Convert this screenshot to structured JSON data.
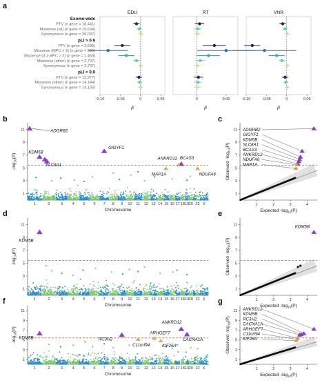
{
  "colors": {
    "ptv": "#1b2a4a",
    "missense_hi": "#2f6fb0",
    "missense_mid": "#4aa0b8",
    "missense_other": "#6fc7a6",
    "synonymous": "#c2e5a0",
    "chr_blue": "#2e8fc2",
    "chr_green": "#7cc576",
    "purple": "#8a3fc4",
    "orange": "#e9a04e",
    "threshold": "#e07b39",
    "qq": "#111111"
  },
  "labels": {
    "a": "a",
    "b": "b",
    "c": "c",
    "d": "d",
    "e": "e",
    "f": "f",
    "g": "g",
    "beta": "β",
    "chromosome": "Chromosome",
    "ylog": "-log10(P)",
    "observed": "Observed -log10(P)",
    "expected": "Expected -log10(P)"
  },
  "chart_data": [
    {
      "id": "a",
      "type": "scatter",
      "subtype": "forest",
      "panels": [
        "EDU",
        "RT",
        "VNR"
      ],
      "xlim": [
        -0.1,
        0.06
      ],
      "xticks": [
        "-0.05",
        "0",
        "0.05"
      ],
      "xtick_values": [
        -0.05,
        0,
        0.05
      ],
      "xticks_edu": [
        "-0.10",
        "-0.05",
        "0",
        "0.05"
      ],
      "xtick_values_edu": [
        -0.1,
        -0.05,
        0,
        0.05
      ],
      "xlabel": "β",
      "groups": [
        {
          "header": "Exome-wide",
          "rows": [
            {
              "label": "PTV (n gene = 18,441)",
              "cls": "ptv",
              "edu": [
                -0.01,
                0.004
              ],
              "rt": [
                0.005,
                0.004
              ],
              "vnr": [
                -0.01,
                0.004
              ]
            },
            {
              "label": "Missense (all) (n gene = 19,634)",
              "cls": "mo",
              "edu": [
                -0.003,
                0.003
              ],
              "rt": [
                0.002,
                0.003
              ],
              "vnr": [
                -0.004,
                0.003
              ]
            },
            {
              "label": "Synonymous (n gene = 20,037)",
              "cls": "syn",
              "edu": [
                0.001,
                0.003
              ],
              "rt": [
                0.001,
                0.003
              ],
              "vnr": [
                0.001,
                0.003
              ]
            }
          ]
        },
        {
          "header": "pLI > 0.9",
          "rows": [
            {
              "label": "PTV (n gene = 2,686)",
              "cls": "ptv",
              "edu": [
                -0.045,
                0.01
              ],
              "rt": [
                0.03,
                0.01
              ],
              "vnr": [
                -0.085,
                0.01
              ]
            },
            {
              "label": "Missense (MPC > 3) (n gene = 580)",
              "cls": "mh",
              "edu": [
                -0.08,
                0.025
              ],
              "rt": [
                0.05,
                0.025
              ],
              "vnr": [
                -0.055,
                0.04
              ]
            },
            {
              "label": "Missense (3 ≥ MPC > 2) (n gene = 1,460)",
              "cls": "mm",
              "edu": [
                -0.035,
                0.01
              ],
              "rt": [
                0.02,
                0.01
              ],
              "vnr": [
                -0.025,
                0.01
              ]
            },
            {
              "label": "Missense (other) (n gene = 2,707)",
              "cls": "mo",
              "edu": [
                -0.01,
                0.004
              ],
              "rt": [
                0.006,
                0.004
              ],
              "vnr": [
                -0.012,
                0.004
              ]
            },
            {
              "label": "Synonymous (n gene = 2,707)",
              "cls": "syn",
              "edu": [
                0.0,
                0.003
              ],
              "rt": [
                0.001,
                0.003
              ],
              "vnr": [
                0.001,
                0.003
              ]
            }
          ]
        },
        {
          "header": "pLI < 0.9",
          "rows": [
            {
              "label": "PTV (n gene = 13,977)",
              "cls": "ptv",
              "edu": [
                -0.004,
                0.004
              ],
              "rt": [
                0.003,
                0.004
              ],
              "vnr": [
                -0.004,
                0.004
              ]
            },
            {
              "label": "Missense (other) (n gene = 14,144)",
              "cls": "mo",
              "edu": [
                -0.002,
                0.003
              ],
              "rt": [
                0.002,
                0.003
              ],
              "vnr": [
                -0.002,
                0.003
              ]
            },
            {
              "label": "Synonymous (n gene = 14,135)",
              "cls": "syn",
              "edu": [
                0.0,
                0.003
              ],
              "rt": [
                0.001,
                0.003
              ],
              "vnr": [
                0.001,
                0.003
              ]
            }
          ]
        }
      ]
    },
    {
      "id": "b",
      "type": "scatter",
      "subtype": "manhattan",
      "trait": "EDU",
      "ylim": [
        0,
        12
      ],
      "yticks": [
        1,
        3,
        5,
        7,
        9,
        11
      ],
      "threshold": 5.4,
      "xlabel": "Chromosome",
      "ylabel": "-log10(P)",
      "chromosomes": [
        "1",
        "2",
        "3",
        "4",
        "5",
        "6",
        "7",
        "8",
        "9",
        "10",
        "11",
        "12",
        "13",
        "14",
        "15",
        "16",
        "17",
        "18",
        "19",
        "20",
        "21",
        "22",
        "X"
      ],
      "chr_ticks": [
        "1",
        "2",
        "3",
        "4",
        "5",
        "6",
        "7",
        "8",
        "9",
        "10",
        "11",
        "12",
        "13",
        "14",
        "15",
        "16",
        "17",
        "18",
        "19",
        "20",
        "22",
        "X"
      ],
      "base_top": 1.8,
      "hits": [
        {
          "gene": "ADGRB2",
          "chr": 1,
          "pos": 0.15,
          "y": 11.1,
          "kind": "purple"
        },
        {
          "gene": "KDM5B",
          "chr": 1,
          "pos": 0.85,
          "y": 6.7,
          "kind": "purple"
        },
        {
          "gene": "",
          "chr": 2,
          "pos": 0.2,
          "y": 6.3,
          "kind": "purple"
        },
        {
          "gene": "SLC8A1",
          "chr": 2,
          "pos": 0.35,
          "y": 6.0,
          "kind": "purple"
        },
        {
          "gene": "GIGYF1",
          "chr": 7,
          "pos": 0.5,
          "y": 7.6,
          "kind": "purple"
        },
        {
          "gene": "ANKRD12",
          "chr": 18,
          "pos": 0.2,
          "y": 5.6,
          "kind": "purple"
        },
        {
          "gene": "BCAS3",
          "chr": 17,
          "pos": 0.7,
          "y": 5.45,
          "kind": "orange"
        },
        {
          "gene": "MAP1A",
          "chr": 15,
          "pos": 0.4,
          "y": 4.9,
          "kind": "orange"
        },
        {
          "gene": "NDUFA6",
          "chr": 22,
          "pos": 0.5,
          "y": 4.9,
          "kind": "orange"
        }
      ],
      "scatter": [
        {
          "chr": 3,
          "pos": 0.4,
          "y": 3.4
        },
        {
          "chr": 4,
          "pos": 0.6,
          "y": 3.1
        },
        {
          "chr": 6,
          "pos": 0.3,
          "y": 3.6
        },
        {
          "chr": 8,
          "pos": 0.5,
          "y": 4.2
        },
        {
          "chr": 9,
          "pos": 0.2,
          "y": 3.2
        },
        {
          "chr": 10,
          "pos": 0.6,
          "y": 3.9
        },
        {
          "chr": 11,
          "pos": 0.5,
          "y": 4.4
        },
        {
          "chr": 12,
          "pos": 0.3,
          "y": 3.0
        },
        {
          "chr": 13,
          "pos": 0.7,
          "y": 3.6
        },
        {
          "chr": 16,
          "pos": 0.5,
          "y": 3.3
        },
        {
          "chr": 19,
          "pos": 0.5,
          "y": 3.1
        },
        {
          "chr": 5,
          "pos": 0.5,
          "y": 2.9
        },
        {
          "chr": 20,
          "pos": 0.3,
          "y": 3.7
        },
        {
          "chr": 1,
          "pos": 0.6,
          "y": 3.5
        },
        {
          "chr": 2,
          "pos": 0.7,
          "y": 3.0
        }
      ]
    },
    {
      "id": "c",
      "type": "scatter",
      "subtype": "qq",
      "trait": "EDU",
      "xlim": [
        0,
        4.6
      ],
      "ylim": [
        0,
        12
      ],
      "xticks": [
        1,
        2,
        3,
        4
      ],
      "yticks": [
        1,
        3,
        5,
        7,
        9,
        11
      ],
      "threshold": 5.4,
      "xlabel": "Expected -log10(P)",
      "ylabel": "Observed -log10(P)",
      "labels": [
        "ADGRB2",
        "GIGYF1",
        "KDM5B",
        "SLC8A1",
        "BCAS3",
        "ANKRD12",
        "NDUFA6",
        "MAP1A"
      ],
      "top_points": [
        {
          "x": 4.4,
          "y": 11.1,
          "kind": "purple"
        },
        {
          "x": 3.7,
          "y": 7.6,
          "kind": "purple"
        },
        {
          "x": 3.6,
          "y": 6.7,
          "kind": "purple"
        },
        {
          "x": 3.55,
          "y": 6.3,
          "kind": "purple"
        },
        {
          "x": 3.5,
          "y": 6.0,
          "kind": "purple"
        },
        {
          "x": 3.45,
          "y": 5.6,
          "kind": "purple"
        },
        {
          "x": 3.4,
          "y": 5.45,
          "kind": "orange"
        },
        {
          "x": 3.35,
          "y": 4.9,
          "kind": "orange"
        },
        {
          "x": 3.3,
          "y": 4.9,
          "kind": "orange"
        }
      ]
    },
    {
      "id": "d",
      "type": "scatter",
      "subtype": "manhattan",
      "trait": "RT",
      "ylim": [
        0,
        12
      ],
      "yticks": [
        1,
        3,
        5,
        7,
        9,
        11
      ],
      "threshold": 5.4,
      "xlabel": "Chromosome",
      "ylabel": "-log10(P)",
      "chromosomes": [
        "1",
        "2",
        "3",
        "4",
        "5",
        "6",
        "7",
        "8",
        "9",
        "10",
        "11",
        "12",
        "13",
        "14",
        "15",
        "16",
        "17",
        "18",
        "19",
        "20",
        "21",
        "22",
        "X"
      ],
      "chr_ticks": [
        "1",
        "2",
        "3",
        "4",
        "5",
        "6",
        "7",
        "8",
        "9",
        "10",
        "11",
        "12",
        "13",
        "14",
        "15",
        "16",
        "17",
        "18",
        "19",
        "20",
        "22",
        "X"
      ],
      "base_top": 2.0,
      "hits": [
        {
          "gene": "KDM5B",
          "chr": 1,
          "pos": 0.85,
          "y": 9.8,
          "kind": "purple"
        }
      ],
      "scatter": [
        {
          "chr": 2,
          "pos": 0.3,
          "y": 4.6
        },
        {
          "chr": 2,
          "pos": 0.7,
          "y": 3.8
        },
        {
          "chr": 3,
          "pos": 0.5,
          "y": 3.4
        },
        {
          "chr": 5,
          "pos": 0.4,
          "y": 3.9
        },
        {
          "chr": 6,
          "pos": 0.6,
          "y": 4.2
        },
        {
          "chr": 8,
          "pos": 0.3,
          "y": 3.6
        },
        {
          "chr": 9,
          "pos": 0.6,
          "y": 3.3
        },
        {
          "chr": 10,
          "pos": 0.4,
          "y": 4.0
        },
        {
          "chr": 11,
          "pos": 0.5,
          "y": 3.7
        },
        {
          "chr": 12,
          "pos": 0.3,
          "y": 4.4
        },
        {
          "chr": 14,
          "pos": 0.5,
          "y": 3.4
        },
        {
          "chr": 16,
          "pos": 0.6,
          "y": 3.6
        },
        {
          "chr": 17,
          "pos": 0.4,
          "y": 3.9
        },
        {
          "chr": 19,
          "pos": 0.5,
          "y": 3.2
        },
        {
          "chr": 4,
          "pos": 0.5,
          "y": 3.1
        }
      ]
    },
    {
      "id": "e",
      "type": "scatter",
      "subtype": "qq",
      "trait": "RT",
      "xlim": [
        0,
        4.6
      ],
      "ylim": [
        0,
        12
      ],
      "xticks": [
        1,
        2,
        3,
        4
      ],
      "yticks": [
        1,
        3,
        5,
        7,
        9,
        11
      ],
      "threshold": 5.4,
      "xlabel": "Expected -log10(P)",
      "ylabel": "Observed -log10(P)",
      "labels": [
        "KDM5B"
      ],
      "top_points": [
        {
          "x": 4.4,
          "y": 9.8,
          "kind": "purple"
        },
        {
          "x": 3.6,
          "y": 4.6,
          "kind": "black"
        },
        {
          "x": 3.45,
          "y": 4.4,
          "kind": "black"
        }
      ]
    },
    {
      "id": "f",
      "type": "scatter",
      "subtype": "manhattan",
      "trait": "VNR",
      "ylim": [
        0,
        12
      ],
      "yticks": [
        1,
        3,
        5,
        7,
        9,
        11
      ],
      "threshold": 5.4,
      "xlabel": "Chromosome",
      "ylabel": "-log10(P)",
      "chromosomes": [
        "1",
        "2",
        "3",
        "4",
        "5",
        "6",
        "7",
        "8",
        "9",
        "10",
        "11",
        "12",
        "13",
        "14",
        "15",
        "16",
        "17",
        "18",
        "19",
        "20",
        "21",
        "22",
        "X"
      ],
      "chr_ticks": [
        "1",
        "2",
        "3",
        "4",
        "5",
        "6",
        "7",
        "8",
        "9",
        "10",
        "11",
        "12",
        "13",
        "14",
        "15",
        "16",
        "17",
        "18",
        "19",
        "20",
        "22",
        "X"
      ],
      "base_top": 2.2,
      "hits": [
        {
          "gene": "KDM5B",
          "chr": 1,
          "pos": 0.85,
          "y": 6.3,
          "kind": "purple"
        },
        {
          "gene": "RC3H2",
          "chr": 9,
          "pos": 0.5,
          "y": 6.0,
          "kind": "purple"
        },
        {
          "gene": "ANKRD12",
          "chr": 18,
          "pos": 0.2,
          "y": 7.2,
          "kind": "purple"
        },
        {
          "gene": "CACNA1A",
          "chr": 19,
          "pos": 0.5,
          "y": 6.1,
          "kind": "purple"
        },
        {
          "gene": "ARHGEF7",
          "chr": 13,
          "pos": 0.6,
          "y": 5.3,
          "kind": "orange"
        },
        {
          "gene": "C11orf94",
          "chr": 11,
          "pos": 0.5,
          "y": 5.1,
          "kind": "orange"
        },
        {
          "gene": "KIF26A",
          "chr": 14,
          "pos": 0.6,
          "y": 4.8,
          "kind": "orange"
        }
      ],
      "scatter": [
        {
          "chr": 2,
          "pos": 0.5,
          "y": 4.1
        },
        {
          "chr": 3,
          "pos": 0.4,
          "y": 3.6
        },
        {
          "chr": 4,
          "pos": 0.5,
          "y": 3.9
        },
        {
          "chr": 5,
          "pos": 0.6,
          "y": 4.6
        },
        {
          "chr": 6,
          "pos": 0.3,
          "y": 3.6
        },
        {
          "chr": 7,
          "pos": 0.5,
          "y": 4.2
        },
        {
          "chr": 8,
          "pos": 0.5,
          "y": 3.4
        },
        {
          "chr": 10,
          "pos": 0.4,
          "y": 3.9
        },
        {
          "chr": 12,
          "pos": 0.5,
          "y": 4.3
        },
        {
          "chr": 15,
          "pos": 0.5,
          "y": 3.6
        },
        {
          "chr": 16,
          "pos": 0.5,
          "y": 3.3
        },
        {
          "chr": 17,
          "pos": 0.4,
          "y": 4.0
        },
        {
          "chr": 20,
          "pos": 0.5,
          "y": 3.4
        },
        {
          "chr": 22,
          "pos": 0.5,
          "y": 3.2
        }
      ]
    },
    {
      "id": "g",
      "type": "scatter",
      "subtype": "qq",
      "trait": "VNR",
      "xlim": [
        0,
        4.6
      ],
      "ylim": [
        0,
        12
      ],
      "xticks": [
        1,
        2,
        3,
        4
      ],
      "yticks": [
        1,
        3,
        5,
        7,
        9,
        11
      ],
      "threshold": 5.4,
      "xlabel": "Expected -log10(P)",
      "ylabel": "Observed -log10(P)",
      "labels": [
        "ANKRD12",
        "KDM5B",
        "RC3H2",
        "CACNA1A",
        "ARHGEF7",
        "C11orf94",
        "KIF26A"
      ],
      "top_points": [
        {
          "x": 4.4,
          "y": 7.2,
          "kind": "purple"
        },
        {
          "x": 3.8,
          "y": 6.3,
          "kind": "purple"
        },
        {
          "x": 3.65,
          "y": 6.1,
          "kind": "purple"
        },
        {
          "x": 3.55,
          "y": 6.0,
          "kind": "purple"
        },
        {
          "x": 3.45,
          "y": 5.3,
          "kind": "orange"
        },
        {
          "x": 3.4,
          "y": 5.1,
          "kind": "orange"
        },
        {
          "x": 3.35,
          "y": 4.8,
          "kind": "orange"
        }
      ]
    }
  ]
}
